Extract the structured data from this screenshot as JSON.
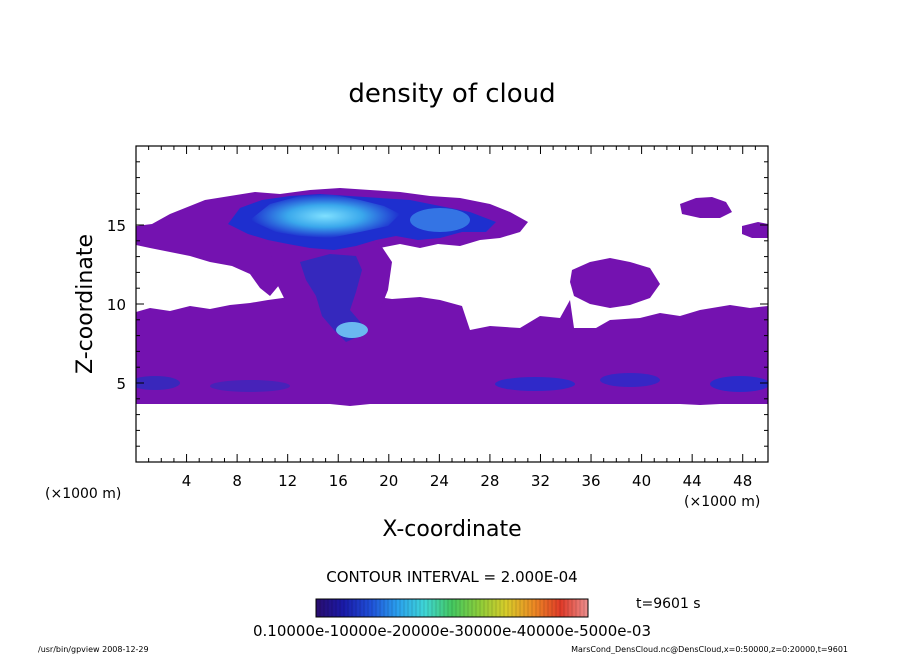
{
  "chart_data": {
    "type": "heatmap",
    "title": "density of cloud",
    "xlabel": "X-coordinate",
    "ylabel": "Z-coordinate",
    "x_units_left": "(×1000 m)",
    "x_units_right": "(×1000 m)",
    "xlim": [
      0,
      50
    ],
    "ylim": [
      0,
      20
    ],
    "xticks": [
      4,
      8,
      12,
      16,
      20,
      24,
      28,
      32,
      36,
      40,
      44,
      48
    ],
    "yticks": [
      5,
      10,
      15
    ],
    "contour_interval_text": "CONTOUR INTERVAL = 2.000E-04",
    "time_label": "t=9601 s",
    "colorbar_labels_text": "0.10000e-10000e-20000e-30000e-40000e-5000e-03",
    "colorbar_levels": [
      0.0001,
      0.0002,
      0.0003,
      0.0004,
      0.0005
    ],
    "colorbar_colors": [
      "#2a0d6e",
      "#1a1aa8",
      "#1f4fd8",
      "#2aa0ee",
      "#3fd6d6",
      "#44c860",
      "#8ccd3a",
      "#d8cc2a",
      "#ec8a24",
      "#e03a28",
      "#ec9090"
    ],
    "footer_left": "/usr/bin/gpview   2008-12-29",
    "footer_right": "MarsCond_DensCloud.nc@DensCloud,x=0:50000,z=0:20000,t=9601",
    "regions": [
      {
        "level": "low",
        "color": "#7412b0",
        "x": [
          0,
          50
        ],
        "z": [
          3.8,
          9.8
        ],
        "note": "lower cloud deck"
      },
      {
        "level": "low",
        "color": "#7412b0",
        "x": [
          0,
          28
        ],
        "z": [
          14.5,
          16.5
        ],
        "note": "upper anvil"
      },
      {
        "level": "low",
        "color": "#7412b0",
        "x": [
          14,
          22
        ],
        "z": [
          9.8,
          14.5
        ],
        "note": "column"
      },
      {
        "level": "low",
        "color": "#7412b0",
        "x": [
          34,
          41
        ],
        "z": [
          9.8,
          12.6
        ],
        "note": "right patch"
      },
      {
        "level": "low",
        "color": "#7412b0",
        "x": [
          43,
          46.5
        ],
        "z": [
          15.3,
          16.6
        ],
        "note": "small top patch"
      },
      {
        "level": "mid",
        "color": "#1e2fcf",
        "x": [
          7.5,
          28
        ],
        "z": [
          14.8,
          17.2
        ],
        "note": "dense anvil"
      },
      {
        "level": "high",
        "color": "#3aa8ec",
        "x": [
          12,
          20
        ],
        "z": [
          15.0,
          16.8
        ],
        "note": "core"
      }
    ]
  }
}
